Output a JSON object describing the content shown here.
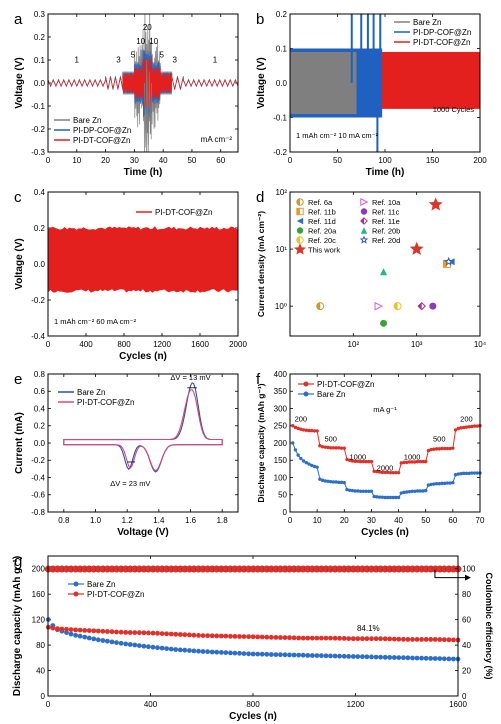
{
  "panels": {
    "a": {
      "letter": "a",
      "unit_text": "mA cm⁻²"
    },
    "b": {
      "letter": "b",
      "caption": "1 mAh cm⁻²  10 mA cm⁻²",
      "cycles_text": "1000 Cycles"
    },
    "c": {
      "letter": "c",
      "caption": "1 mAh cm⁻²  60 mA cm⁻²"
    },
    "d": {
      "letter": "d"
    },
    "e": {
      "letter": "e",
      "dv_top": "ΔV = 13 mV",
      "dv_bottom": "ΔV = 23 mV"
    },
    "f": {
      "letter": "f",
      "unit_text": "mA g⁻¹"
    },
    "g": {
      "letter": "g",
      "retention_text": "84.1%"
    }
  },
  "colors": {
    "bare": "#7f7f7f",
    "dp": "#2060c0",
    "dt": "#e3201e",
    "blue": "#2d6fc8",
    "red": "#e0302a"
  },
  "chart_data": [
    {
      "panel": "a",
      "type": "line",
      "xlabel": "Time (h)",
      "ylabel": "Voltage (V)",
      "xlim": [
        0,
        66
      ],
      "ylim": [
        -0.3,
        0.3
      ],
      "xticks": [
        0,
        10,
        20,
        30,
        40,
        50,
        60
      ],
      "yticks": [
        -0.3,
        -0.2,
        -0.1,
        0.0,
        0.1,
        0.2,
        0.3
      ],
      "series": [
        {
          "name": "Bare Zn"
        },
        {
          "name": "PI-DP-COF@Zn"
        },
        {
          "name": "PI-DT-COF@Zn"
        }
      ],
      "rate_labels": [
        {
          "label": "1",
          "x": 10,
          "y": 0.09
        },
        {
          "label": "3",
          "x": 24.5,
          "y": 0.09
        },
        {
          "label": "5",
          "x": 29.5,
          "y": 0.11
        },
        {
          "label": "10",
          "x": 32.2,
          "y": 0.17
        },
        {
          "label": "20",
          "x": 34.5,
          "y": 0.23
        },
        {
          "label": "10",
          "x": 36.7,
          "y": 0.17
        },
        {
          "label": "5",
          "x": 39.5,
          "y": 0.11
        },
        {
          "label": "3",
          "x": 44,
          "y": 0.09
        },
        {
          "label": "1",
          "x": 58,
          "y": 0.09
        }
      ],
      "segments": [
        {
          "t0": 0,
          "t1": 20,
          "rate": 1
        },
        {
          "t0": 20,
          "t1": 26,
          "rate": 3
        },
        {
          "t0": 26,
          "t1": 30,
          "rate": 5
        },
        {
          "t0": 30,
          "t1": 33,
          "rate": 10
        },
        {
          "t0": 33,
          "t1": 36,
          "rate": 20
        },
        {
          "t0": 36,
          "t1": 39,
          "rate": 10
        },
        {
          "t0": 39,
          "t1": 43,
          "rate": 5
        },
        {
          "t0": 43,
          "t1": 47,
          "rate": 3
        },
        {
          "t0": 47,
          "t1": 66,
          "rate": 1
        }
      ]
    },
    {
      "panel": "b",
      "type": "line",
      "xlabel": "Time (h)",
      "ylabel": "Voltage (V)",
      "xlim": [
        0,
        200
      ],
      "ylim": [
        -0.2,
        0.2
      ],
      "xticks": [
        0,
        50,
        100,
        150,
        200
      ],
      "yticks": [
        -0.2,
        -0.1,
        0.0,
        0.1,
        0.2
      ],
      "series": [
        {
          "name": "Bare Zn",
          "end_h": 70,
          "band": [
            -0.09,
            0.09
          ]
        },
        {
          "name": "PI-DP-COF@Zn",
          "end_h": 97,
          "band": [
            -0.1,
            0.1
          ]
        },
        {
          "name": "PI-DT-COF@Zn",
          "end_h": 200,
          "band": [
            -0.075,
            0.09
          ]
        }
      ]
    },
    {
      "panel": "c",
      "type": "area",
      "xlabel": "Cycles (n)",
      "ylabel": "Voltage (V)",
      "xlim": [
        0,
        2000
      ],
      "ylim": [
        -0.4,
        0.4
      ],
      "xticks": [
        0,
        400,
        800,
        1200,
        1600,
        2000
      ],
      "yticks": [
        -0.4,
        -0.2,
        0.0,
        0.2,
        0.4
      ],
      "series": [
        {
          "name": "PI-DT-COF@Zn",
          "band": [
            -0.15,
            0.2
          ]
        }
      ]
    },
    {
      "panel": "d",
      "type": "scatter",
      "xlabel": "Cumulative capacity",
      "ylabel": "Current density (mA cm⁻²)",
      "xscale": "log",
      "yscale": "log",
      "xlim": [
        10,
        10000
      ],
      "ylim": [
        0.3,
        100
      ],
      "xticks": [
        100,
        1000,
        10000
      ],
      "yticks": [
        1,
        10,
        100
      ],
      "xtick_labels": [
        "10²",
        "10³",
        "10⁴"
      ],
      "ytick_labels": [
        "10⁰",
        "10¹",
        "10²"
      ],
      "points": [
        {
          "name": "Ref. 6a",
          "x": 30,
          "y": 1,
          "marker": "circle-half",
          "color": "#c89b2a"
        },
        {
          "name": "Ref. 10a",
          "x": 250,
          "y": 1,
          "marker": "tri-right",
          "color": "#d35ad8"
        },
        {
          "name": "Ref. 11b",
          "x": 3000,
          "y": 5.5,
          "marker": "square-half",
          "color": "#e89a2c"
        },
        {
          "name": "Ref. 11c",
          "x": 1800,
          "y": 1,
          "marker": "circle",
          "color": "#8a3bb8"
        },
        {
          "name": "Ref. 11d",
          "x": 3500,
          "y": 6,
          "marker": "tri-left",
          "color": "#2f6fc0"
        },
        {
          "name": "Ref. 11e",
          "x": 1200,
          "y": 1,
          "marker": "diamond-half",
          "color": "#b0307a"
        },
        {
          "name": "Ref. 20a",
          "x": 300,
          "y": 0.5,
          "marker": "circle",
          "color": "#3aa33a"
        },
        {
          "name": "Ref. 20b",
          "x": 300,
          "y": 4,
          "marker": "tri-up",
          "color": "#22b58c"
        },
        {
          "name": "Ref. 20c",
          "x": 500,
          "y": 1,
          "marker": "circle-half",
          "color": "#e8c227"
        },
        {
          "name": "Ref. 20d",
          "x": 3200,
          "y": 6,
          "marker": "star-open",
          "color": "#2f5fb0"
        },
        {
          "name": "This work",
          "x": 1000,
          "y": 10,
          "marker": "star",
          "color": "#d9362b"
        },
        {
          "name": "",
          "x": 2000,
          "y": 60,
          "marker": "star",
          "color": "#d9362b"
        }
      ]
    },
    {
      "panel": "e",
      "type": "line",
      "xlabel": "Voltage (V)",
      "ylabel": "Current (mA)",
      "xlim": [
        0.7,
        1.9
      ],
      "ylim": [
        -0.8,
        0.8
      ],
      "xticks": [
        0.8,
        1.0,
        1.2,
        1.4,
        1.6,
        1.8
      ],
      "yticks": [
        -0.8,
        -0.6,
        -0.4,
        -0.2,
        0.0,
        0.2,
        0.4,
        0.6,
        0.8
      ],
      "series": [
        {
          "name": "Bare Zn"
        },
        {
          "name": "PI-DT-COF@Zn"
        }
      ]
    },
    {
      "panel": "f",
      "type": "line",
      "xlabel": "Cycles (n)",
      "ylabel": "Discharge capacity (mAh g⁻¹)",
      "xlim": [
        0,
        70
      ],
      "ylim": [
        0,
        400
      ],
      "xticks": [
        0,
        10,
        20,
        30,
        40,
        50,
        60,
        70
      ],
      "yticks": [
        0,
        50,
        100,
        150,
        200,
        250,
        300,
        350,
        400
      ],
      "rate_labels": [
        {
          "label": "200",
          "x": 4,
          "y": 262
        },
        {
          "label": "500",
          "x": 15,
          "y": 205
        },
        {
          "label": "1000",
          "x": 25,
          "y": 152
        },
        {
          "label": "2000",
          "x": 35,
          "y": 120
        },
        {
          "label": "1000",
          "x": 45,
          "y": 152
        },
        {
          "label": "500",
          "x": 55,
          "y": 205
        },
        {
          "label": "200",
          "x": 65,
          "y": 262
        }
      ],
      "series": [
        {
          "name": "PI-DT-COF@Zn",
          "x": [
            1,
            2,
            3,
            4,
            5,
            6,
            7,
            8,
            9,
            10,
            11,
            12,
            13,
            14,
            15,
            16,
            17,
            18,
            19,
            20,
            21,
            22,
            23,
            24,
            25,
            26,
            27,
            28,
            29,
            30,
            31,
            32,
            33,
            34,
            35,
            36,
            37,
            38,
            39,
            40,
            41,
            42,
            43,
            44,
            45,
            46,
            47,
            48,
            49,
            50,
            51,
            52,
            53,
            54,
            55,
            56,
            57,
            58,
            59,
            60,
            61,
            62,
            63,
            64,
            65,
            66,
            67,
            68,
            69,
            70
          ],
          "values": [
            250,
            245,
            242,
            240,
            238,
            237,
            236,
            236,
            235,
            235,
            192,
            189,
            188,
            187,
            186,
            186,
            186,
            186,
            185,
            185,
            152,
            150,
            148,
            147,
            147,
            146,
            146,
            146,
            146,
            146,
            118,
            117,
            116,
            115,
            115,
            115,
            114,
            114,
            114,
            114,
            142,
            144,
            144,
            145,
            145,
            145,
            146,
            146,
            146,
            146,
            178,
            181,
            182,
            183,
            183,
            184,
            184,
            184,
            184,
            185,
            238,
            242,
            244,
            245,
            246,
            247,
            248,
            249,
            249,
            250
          ]
        },
        {
          "name": "Bare Zn",
          "x": [
            1,
            2,
            3,
            4,
            5,
            6,
            7,
            8,
            9,
            10,
            11,
            12,
            13,
            14,
            15,
            16,
            17,
            18,
            19,
            20,
            21,
            22,
            23,
            24,
            25,
            26,
            27,
            28,
            29,
            30,
            31,
            32,
            33,
            34,
            35,
            36,
            37,
            38,
            39,
            40,
            41,
            42,
            43,
            44,
            45,
            46,
            47,
            48,
            49,
            50,
            51,
            52,
            53,
            54,
            55,
            56,
            57,
            58,
            59,
            60,
            61,
            62,
            63,
            64,
            65,
            66,
            67,
            68,
            69,
            70
          ],
          "values": [
            200,
            180,
            165,
            155,
            148,
            143,
            139,
            135,
            132,
            130,
            95,
            92,
            90,
            89,
            88,
            87,
            87,
            86,
            86,
            85,
            65,
            63,
            62,
            61,
            61,
            60,
            60,
            60,
            60,
            60,
            45,
            44,
            43,
            43,
            42,
            42,
            42,
            42,
            42,
            42,
            55,
            57,
            58,
            59,
            60,
            60,
            61,
            61,
            61,
            62,
            78,
            80,
            81,
            82,
            82,
            83,
            83,
            84,
            84,
            85,
            108,
            110,
            111,
            112,
            112,
            112,
            113,
            113,
            113,
            113
          ]
        }
      ]
    },
    {
      "panel": "g",
      "type": "line",
      "xlabel": "Cycles (n)",
      "ylabel": "Discharge capacity (mAh g⁻¹)",
      "y2label": "Coulombic efficiency (%)",
      "xlim": [
        0,
        1600
      ],
      "ylim": [
        0,
        220
      ],
      "y2lim": [
        0,
        110
      ],
      "xticks": [
        0,
        400,
        800,
        1200,
        1600
      ],
      "yticks": [
        0,
        40,
        80,
        120,
        160,
        200
      ],
      "y2ticks": [
        0,
        20,
        40,
        60,
        80,
        100
      ],
      "series": [
        {
          "name": "Bare Zn",
          "x": [
            1,
            30,
            100,
            200,
            300,
            400,
            500,
            600,
            700,
            800,
            900,
            1000,
            1100,
            1200,
            1300,
            1400,
            1500,
            1600
          ],
          "values": [
            120,
            105,
            96,
            88,
            82,
            77,
            73,
            70,
            68,
            66,
            65,
            64,
            63,
            62,
            61,
            60,
            59,
            58
          ]
        },
        {
          "name": "PI-DT-COF@Zn",
          "x": [
            1,
            30,
            100,
            200,
            300,
            400,
            500,
            600,
            700,
            800,
            900,
            1000,
            1100,
            1200,
            1300,
            1400,
            1500,
            1600
          ],
          "values": [
            108,
            106,
            104,
            102,
            100,
            99,
            97,
            95,
            94,
            93,
            92,
            91,
            91,
            90,
            90,
            89,
            89,
            88
          ]
        },
        {
          "name": "Coulombic efficiency",
          "axis": "right",
          "x": [
            1,
            1600
          ],
          "values": [
            99.8,
            99.8
          ]
        }
      ]
    }
  ]
}
